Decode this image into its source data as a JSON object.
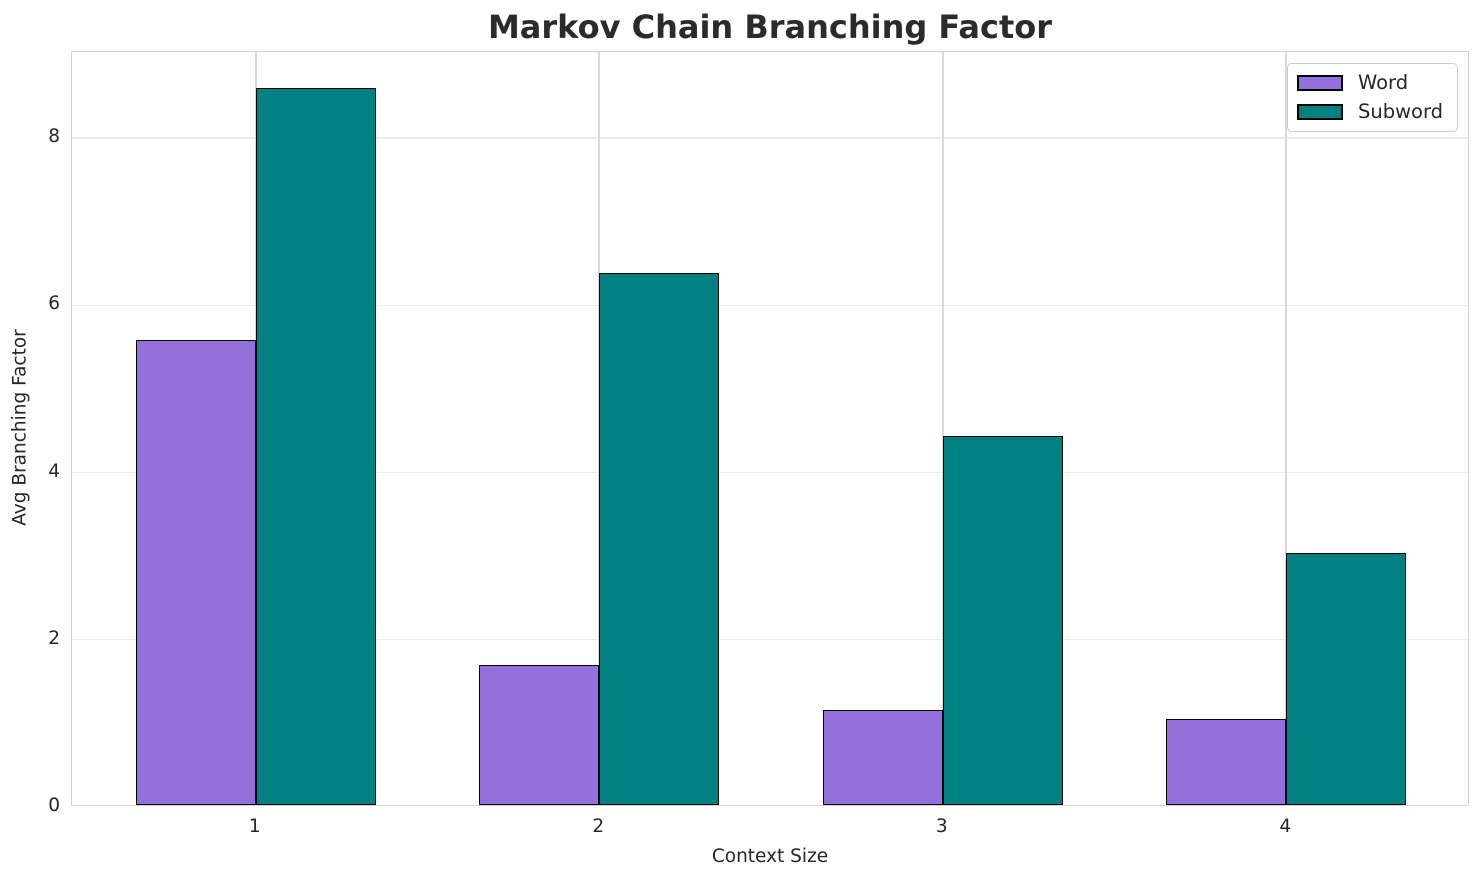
{
  "chart_data": {
    "type": "bar",
    "title": "Markov Chain Branching Factor",
    "xlabel": "Context Size",
    "ylabel": "Avg Branching Factor",
    "categories": [
      1,
      2,
      3,
      4
    ],
    "series": [
      {
        "name": "Word",
        "color": "#9370DB",
        "values": [
          5.56,
          1.67,
          1.14,
          1.03
        ]
      },
      {
        "name": "Subword",
        "color": "#008080",
        "values": [
          8.58,
          6.36,
          4.41,
          3.01
        ]
      }
    ],
    "bar_width": 0.35,
    "edge_color": "#000000",
    "xlim": [
      0.465,
      4.535
    ],
    "ylim": [
      0,
      9.03
    ],
    "yticks": [
      0,
      2,
      4,
      6,
      8
    ],
    "xticks": [
      1,
      2,
      3,
      4
    ],
    "grid": true,
    "legend_position": "upper right"
  },
  "style_colors": {
    "background": "#ffffff",
    "grid_horizontal": "#ebebeb",
    "grid_vertical": "#d9d9d9",
    "spine": "#d4d4d4",
    "text": "#262626",
    "title_text": "#2b2b2b"
  }
}
